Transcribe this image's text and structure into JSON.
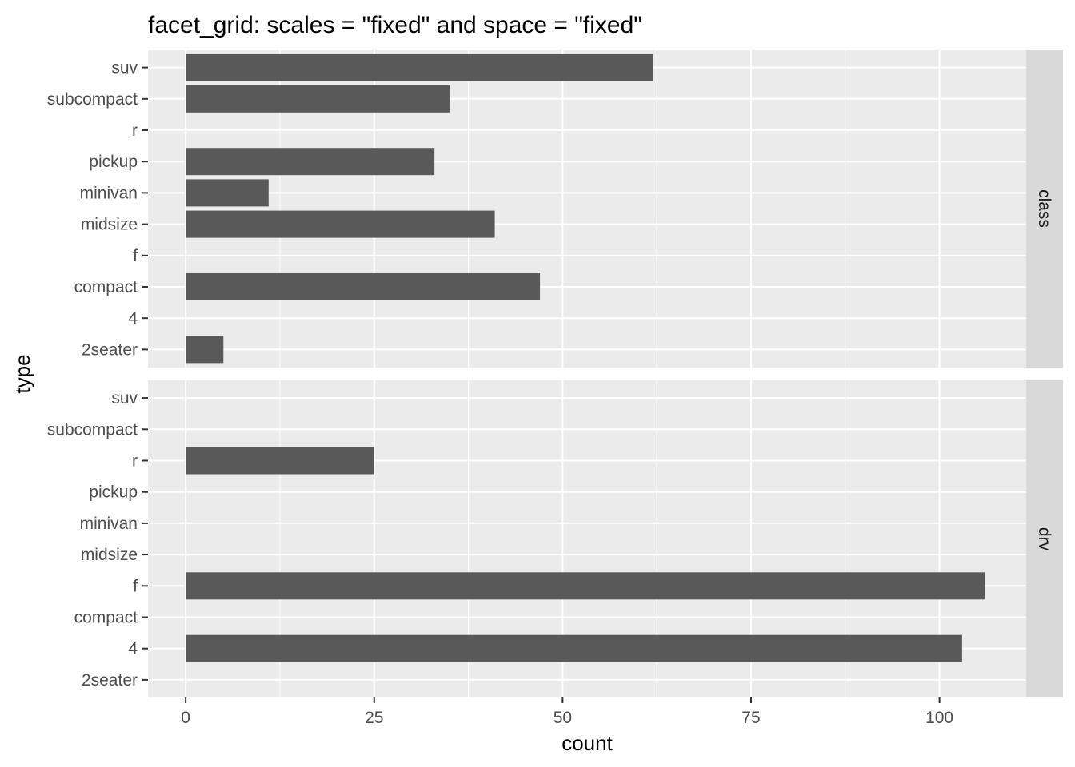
{
  "chart_data": {
    "type": "bar",
    "orientation": "horizontal",
    "title": "facet_grid: scales = \"fixed\" and space = \"fixed\"",
    "xlabel": "count",
    "ylabel": "type",
    "categories": [
      "2seater",
      "4",
      "compact",
      "f",
      "midsize",
      "minivan",
      "pickup",
      "r",
      "subcompact",
      "suv"
    ],
    "xlim": [
      -5,
      111.5
    ],
    "x_ticks": [
      0,
      25,
      50,
      75,
      100
    ],
    "grid": true,
    "bar_color": "#595959",
    "panel_color": "#ebebeb",
    "strip_color": "#d9d9d9",
    "facets": [
      {
        "strip": "class",
        "values": [
          5,
          0,
          47,
          0,
          41,
          11,
          33,
          0,
          35,
          62
        ]
      },
      {
        "strip": "drv",
        "values": [
          0,
          103,
          0,
          106,
          0,
          0,
          0,
          25,
          0,
          0
        ]
      }
    ]
  }
}
